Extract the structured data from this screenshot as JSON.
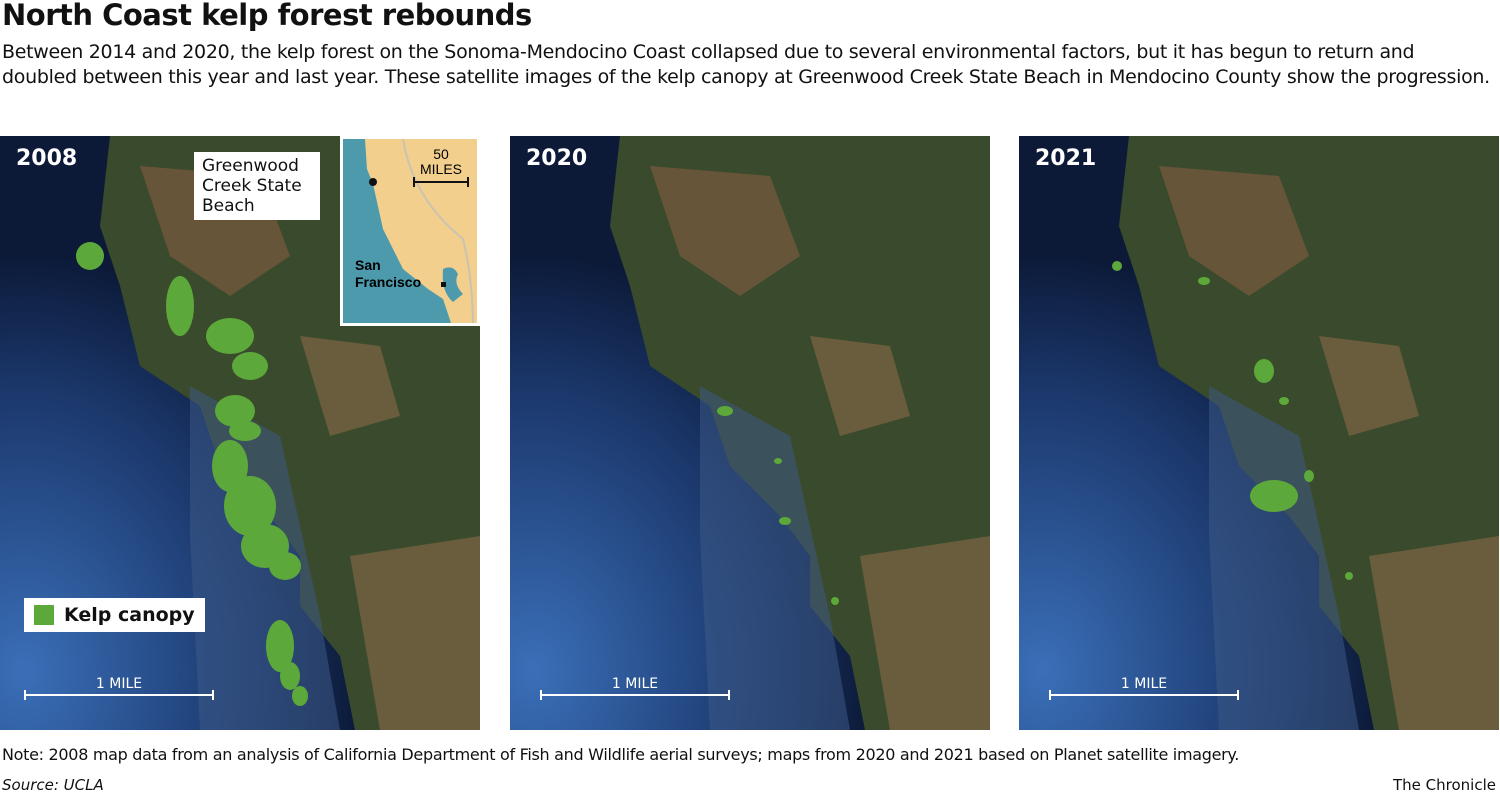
{
  "title": "North Coast kelp forest rebounds",
  "description": "Between 2014 and 2020, the kelp forest on the Sonoma-Mendocino Coast collapsed due to several environmental factors, but it has begun to return and doubled between this year and last year. These satellite images of the kelp canopy at Greenwood Creek State Beach in Mendocino County show the progression.",
  "panels": [
    {
      "year": "2008",
      "scale_label": "1 MILE",
      "kelp_extent": "large"
    },
    {
      "year": "2020",
      "scale_label": "1 MILE",
      "kelp_extent": "minimal"
    },
    {
      "year": "2021",
      "scale_label": "1 MILE",
      "kelp_extent": "moderate"
    }
  ],
  "inset": {
    "location_label": "Greenwood Creek State Beach",
    "city_label": "San Francisco",
    "scale_value": "50",
    "scale_unit": "MILES"
  },
  "legend": {
    "label": "Kelp canopy",
    "color": "#5da83a"
  },
  "colors": {
    "ocean": "#1f3f7a",
    "land_forest": "#2a3a22",
    "land_dry": "#8a6a4a",
    "inset_ocean": "#4c9aab",
    "inset_land": "#f3cf8e"
  },
  "note": "Note: 2008 map data from an analysis of California Department of Fish and Wildlife aerial surveys; maps from 2020 and 2021 based on Planet satellite imagery.",
  "source": "Source: UCLA",
  "credit": "The Chronicle"
}
